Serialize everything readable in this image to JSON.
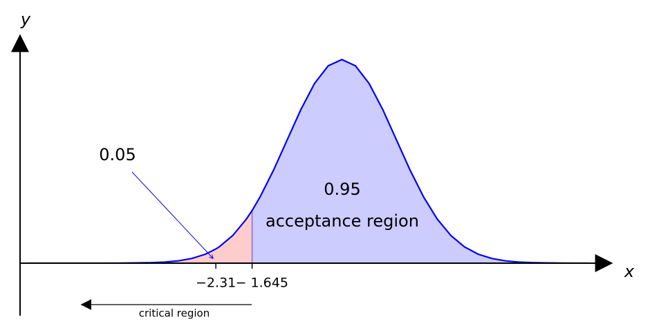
{
  "chart_data": {
    "type": "line",
    "x": [
      -5.75,
      -5.5,
      -5.25,
      -5,
      -4.75,
      -4.5,
      -4.25,
      -4,
      -3.75,
      -3.5,
      -3.25,
      -3,
      -2.75,
      -2.5,
      -2.31,
      -2.25,
      -2,
      -1.75,
      -1.645,
      -1.5,
      -1.25,
      -1,
      -0.75,
      -0.5,
      -0.25,
      0,
      0.25,
      0.5,
      0.75,
      1,
      1.25,
      1.5,
      1.75,
      2,
      2.25,
      2.5,
      2.75,
      3,
      3.25,
      3.5,
      3.75,
      4,
      4.25,
      4.5
    ],
    "values": [
      0,
      0,
      0,
      0,
      0,
      0,
      0,
      0.0001,
      0.0004,
      0.0009,
      0.002,
      0.0044,
      0.0091,
      0.0175,
      0.0277,
      0.0317,
      0.054,
      0.0863,
      0.1031,
      0.1295,
      0.1826,
      0.242,
      0.3011,
      0.3521,
      0.3867,
      0.3989,
      0.3867,
      0.3521,
      0.3011,
      0.242,
      0.1826,
      0.1295,
      0.0863,
      0.054,
      0.0317,
      0.0175,
      0.0091,
      0.0044,
      0.002,
      0.0009,
      0.0004,
      0.0001,
      0,
      0
    ],
    "color": "#0000ee",
    "xlim": [
      -5.9,
      4.7
    ],
    "ylim": [
      -0.103,
      0.448
    ],
    "xticks": [
      {
        "value": -2.31,
        "label": "−2.31"
      },
      {
        "value": -1.645,
        "label": "− 1.645"
      }
    ],
    "x_label": "x",
    "y_label": "y",
    "regions": [
      {
        "label": "0.05",
        "color": "#ffcccc"
      },
      {
        "label": "0.95",
        "color": "#ccccff",
        "name": "acceptance region"
      }
    ],
    "annotation": "critical region"
  }
}
